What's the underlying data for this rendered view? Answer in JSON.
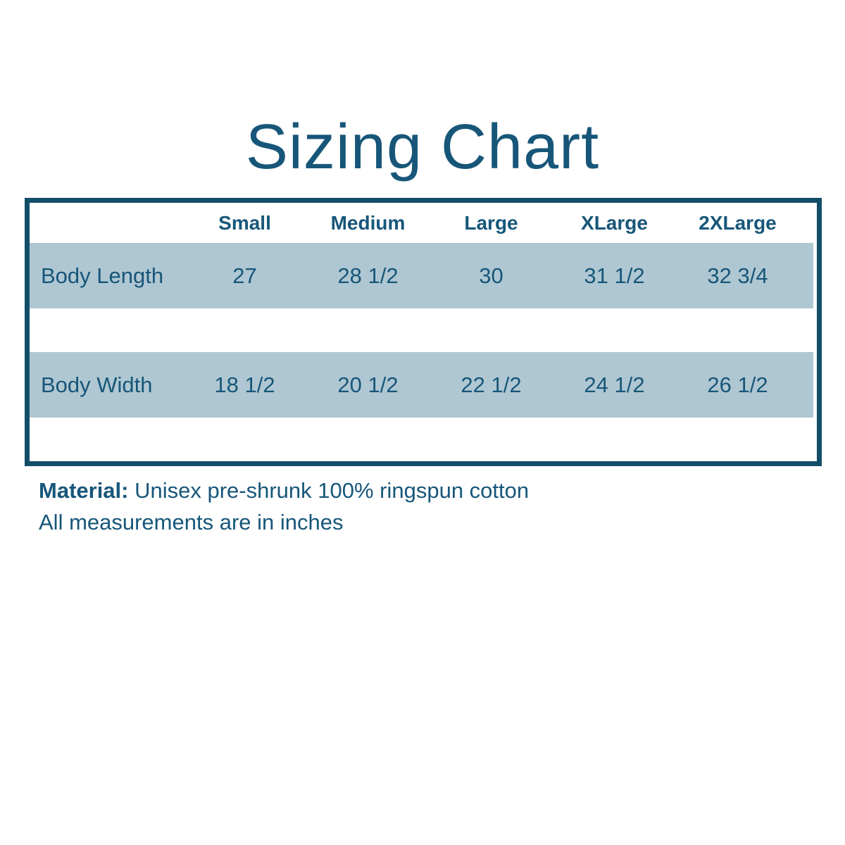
{
  "title": "Sizing Chart",
  "chart_data": {
    "type": "table",
    "title": "Sizing Chart",
    "columns": [
      "Small",
      "Medium",
      "Large",
      "XLarge",
      "2XLarge"
    ],
    "rows": [
      [
        "Body Length",
        "27",
        "28 1/2",
        "30",
        "31 1/2",
        "32 3/4"
      ],
      [
        "Body Width",
        "18 1/2",
        "20 1/2",
        "22 1/2",
        "24 1/2",
        "26 1/2"
      ]
    ]
  },
  "notes": {
    "material_label": "Material:",
    "material_value": " Unisex pre-shrunk 100% ringspun cotton",
    "measurements_note": "All measurements are in inches"
  },
  "colors": {
    "text_dark": "#175679",
    "table_border": "#124e68",
    "row_highlight": "#afc7d2",
    "background": "#ffffff"
  }
}
